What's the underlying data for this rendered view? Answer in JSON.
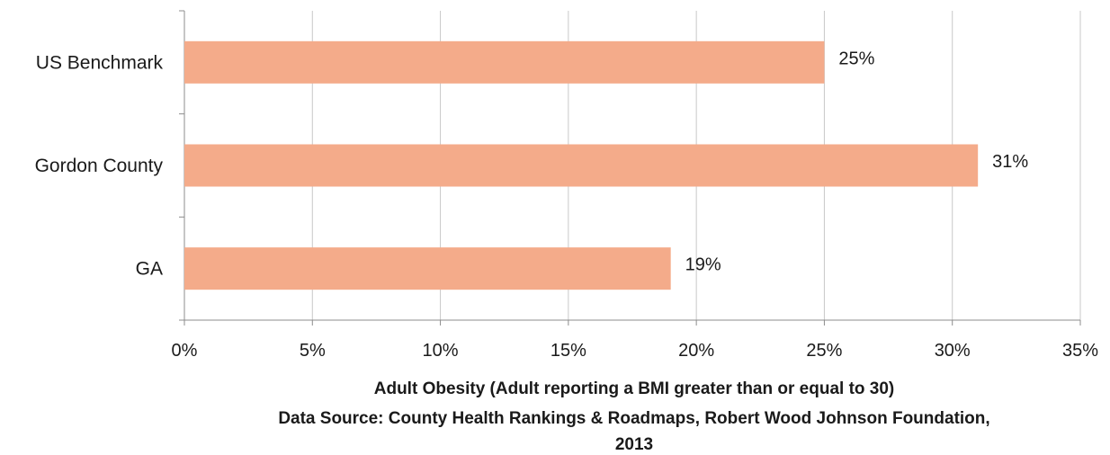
{
  "chart_data": {
    "type": "bar",
    "orientation": "horizontal",
    "categories": [
      "US Benchmark",
      "Gordon County",
      "GA"
    ],
    "values": [
      25,
      31,
      19
    ],
    "data_labels": [
      "25%",
      "31%",
      "19%"
    ],
    "xlim": [
      0,
      35
    ],
    "xticks": [
      0,
      5,
      10,
      15,
      20,
      25,
      30,
      35
    ],
    "xtick_labels": [
      "0%",
      "5%",
      "10%",
      "15%",
      "20%",
      "25%",
      "30%",
      "35%"
    ],
    "xlabel_lines": [
      "Adult Obesity (Adult reporting a BMI greater than or equal to 30)",
      "Data Source: County Health Rankings & Roadmaps, Robert Wood Johnson Foundation,",
      "2013"
    ],
    "bar_color": "#f4ab8a",
    "grid": true,
    "legend": "none"
  }
}
